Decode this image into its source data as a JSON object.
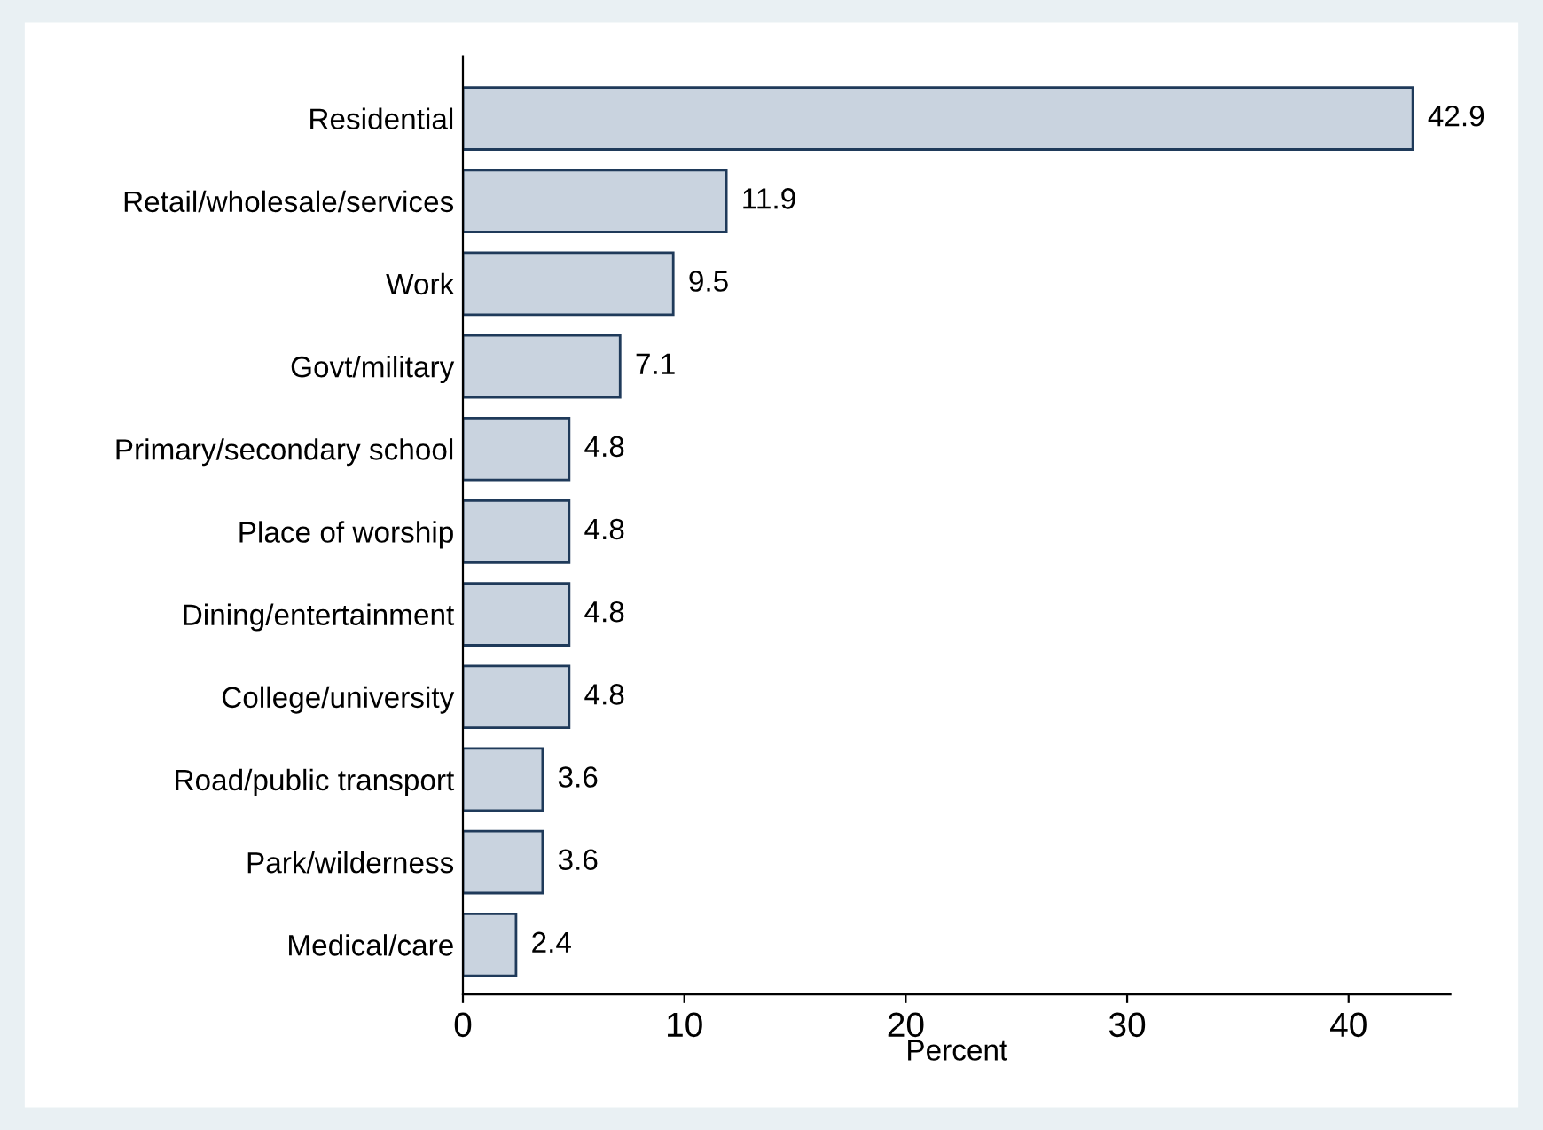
{
  "chart_data": {
    "type": "bar",
    "orientation": "horizontal",
    "xlabel": "Percent",
    "categories": [
      "Residential",
      "Retail/wholesale/services",
      "Work",
      "Govt/military",
      "Primary/secondary school",
      "Place of worship",
      "Dining/entertainment",
      "College/university",
      "Road/public transport",
      "Park/wilderness",
      "Medical/care"
    ],
    "values": [
      42.9,
      11.9,
      9.5,
      7.1,
      4.8,
      4.8,
      4.8,
      4.8,
      3.6,
      3.6,
      2.4
    ],
    "value_labels": [
      "42.9",
      "11.9",
      "9.5",
      "7.1",
      "4.8",
      "4.8",
      "4.8",
      "4.8",
      "3.6",
      "3.6",
      "2.4"
    ],
    "color": "#c9d3df",
    "xlim": [
      0,
      44.6
    ],
    "xticks": [
      0,
      10,
      20,
      30,
      40
    ],
    "grid": false,
    "legend": false
  }
}
